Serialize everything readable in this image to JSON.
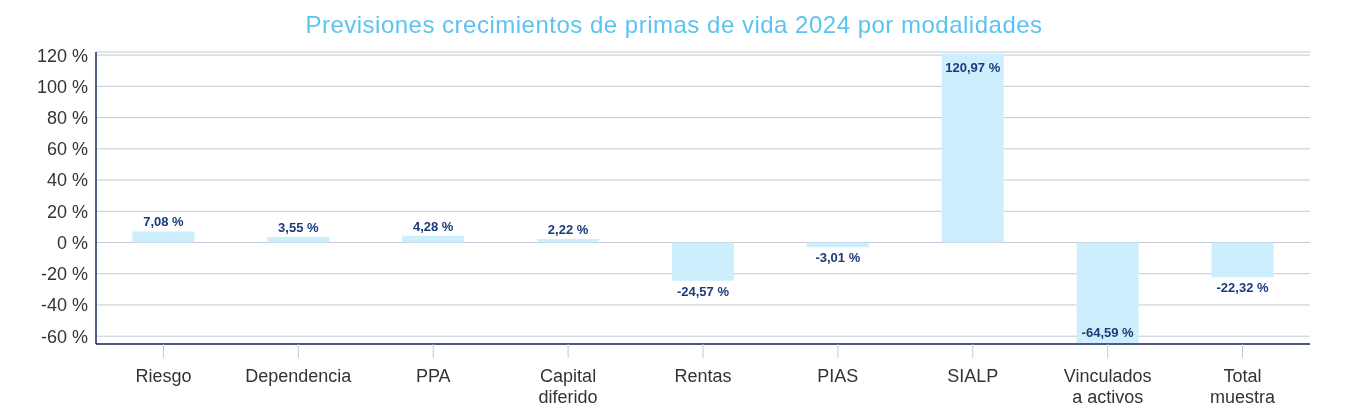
{
  "chart_data": {
    "type": "bar",
    "title": "Previsiones crecimientos de primas de vida 2024 por modalidades",
    "categories": [
      "Riesgo",
      "Dependencia",
      "PPA",
      "Capital\ndiferido",
      "Rentas",
      "PIAS",
      "SIALP",
      "Vinculados\na activos",
      "Total\nmuestra"
    ],
    "values": [
      7.08,
      3.55,
      4.28,
      2.22,
      -24.57,
      -3.01,
      120.97,
      -64.59,
      -22.32
    ],
    "color": "#cdeefc",
    "value_labels": [
      "7,08 %",
      "3,55 %",
      "4,28 %",
      "2,22 %",
      "-24,57 %",
      "-3,01 %",
      "120,97 %",
      "-64,59 %",
      "-22,32 %"
    ],
    "ylim": [
      -65,
      122
    ],
    "yticks": [
      {
        "value": -60,
        "label": "-60 %"
      },
      {
        "value": -40,
        "label": "-40 %"
      },
      {
        "value": -20,
        "label": "-20 %"
      },
      {
        "value": 0,
        "label": "0 %"
      },
      {
        "value": 20,
        "label": "20 %"
      },
      {
        "value": 40,
        "label": "40 %"
      },
      {
        "value": 60,
        "label": "60 %"
      },
      {
        "value": 80,
        "label": "80 %"
      },
      {
        "value": 100,
        "label": "100 %"
      },
      {
        "value": 120,
        "label": "120 %"
      }
    ],
    "grid": "y",
    "legend": false
  }
}
